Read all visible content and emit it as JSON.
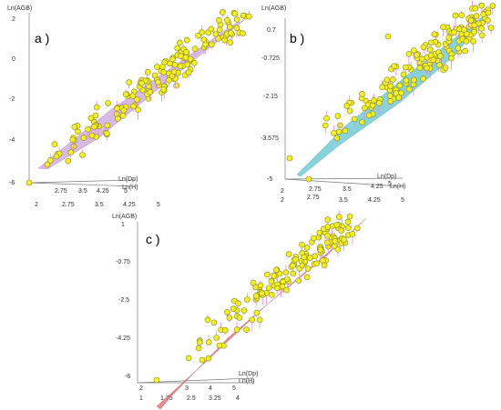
{
  "chart_data": [
    {
      "type": "scatter",
      "panel_label": "a )",
      "zlabel": "Ln(AGB)",
      "xlabel": "Ln(Dp)",
      "ylabel": "Ln(H)",
      "zticks": [
        "2",
        "0",
        "-2",
        "-4",
        "-6"
      ],
      "xticks": [
        "2",
        "2.75",
        "3.5",
        "4.25",
        "5"
      ],
      "yticks": [
        "2.75",
        "3.5",
        "4.25",
        "5"
      ],
      "surface_color": "#c79ad8",
      "point_color": "#f3f01e",
      "residual_color": "#e58fd6",
      "x_range": [
        2,
        5
      ],
      "z_range": [
        -6,
        2
      ]
    },
    {
      "type": "scatter",
      "panel_label": "b )",
      "zlabel": "Ln(AGB)",
      "xlabel": "Ln(Dp)",
      "ylabel": "Ln(H)",
      "zticks": [
        "0.7",
        "-0.725",
        "-2.15",
        "-3.575",
        "-5"
      ],
      "xticks": [
        "2",
        "2.75",
        "3.5",
        "4.25",
        "5"
      ],
      "yticks": [
        "2",
        "2.75",
        "3.5",
        "4.25",
        "5"
      ],
      "surface_color": "#5fc3cf",
      "point_color": "#f3f01e",
      "residual_color": "#e58fd6",
      "x_range": [
        2,
        5
      ],
      "z_range": [
        -5,
        0.7
      ]
    },
    {
      "type": "scatter",
      "panel_label": "c )",
      "zlabel": "Ln(AGB)",
      "xlabel": "Ln(Dp)",
      "ylabel": "Ln(H)",
      "zticks": [
        "1",
        "-0.75",
        "-2.5",
        "-4.25",
        "-6"
      ],
      "xticks": [
        "1",
        "1.75",
        "2.5",
        "3.25",
        "4"
      ],
      "yticks": [
        "2",
        "3",
        "4",
        "5"
      ],
      "surface_color": "#d96a72",
      "point_color": "#f3f01e",
      "residual_color": "#e58fd6",
      "x_range": [
        1,
        4
      ],
      "z_range": [
        -6,
        1
      ]
    }
  ]
}
